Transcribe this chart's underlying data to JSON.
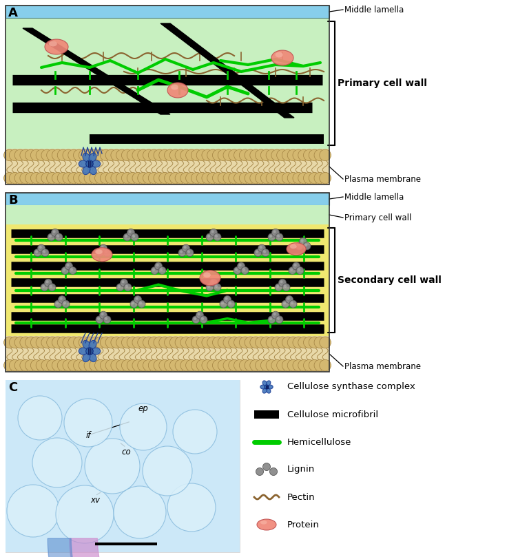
{
  "fig_width": 7.36,
  "fig_height": 8.09,
  "bg_color": "#ffffff",
  "ml_color": "#87CEEB",
  "pw_color": "#c8f0c0",
  "sw_color": "#f0e870",
  "pm_color": "#e8ddb8",
  "hemi_color": "#00cc00",
  "pectin_color": "#8B6430",
  "panel_A_label": "A",
  "panel_B_label": "B",
  "panel_C_label": "C",
  "label_ml": "Middle lamella",
  "label_pw": "Primary cell wall",
  "label_sw": "Secondary cell wall",
  "label_pm": "Plasma membrane",
  "legend_items": [
    {
      "symbol": "synthase",
      "text": "Cellulose synthase complex"
    },
    {
      "symbol": "microfibril",
      "text": "Cellulose microfibril"
    },
    {
      "symbol": "hemi",
      "text": "Hemicellulose"
    },
    {
      "symbol": "lignin",
      "text": "Lignin"
    },
    {
      "symbol": "pectin",
      "text": "Pectin"
    },
    {
      "symbol": "protein",
      "text": "Protein"
    }
  ]
}
